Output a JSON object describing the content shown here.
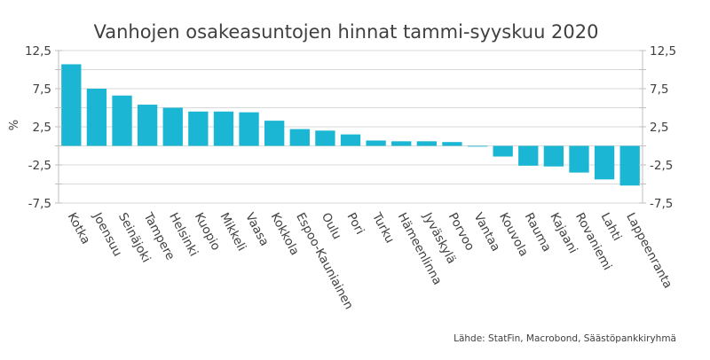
{
  "chart_data": {
    "type": "bar",
    "title": "Vanhojen osakeasuntojen hinnat tammi-syyskuu 2020",
    "ylabel": "%",
    "xlabel": "",
    "source": "Lähde: StatFin, Macrobond, Säästöpankkiryhmä",
    "ylim": [
      -7.5,
      12.5
    ],
    "yticks": [
      12.5,
      10,
      7.5,
      5,
      2.5,
      0,
      -2.5,
      -5,
      -7.5
    ],
    "ytick_labels": [
      "12,5",
      "",
      "7,5",
      "",
      "2,5",
      "",
      "-2,5",
      "",
      "-7,5"
    ],
    "grid": true,
    "color": "#1ab6d3",
    "categories": [
      "Kotka",
      "Joensuu",
      "Seinäjoki",
      "Tampere",
      "Helsinki",
      "Kuopio",
      "Mikkeli",
      "Vaasa",
      "Kokkola",
      "Espoo-Kauniainen",
      "Oulu",
      "Pori",
      "Turku",
      "Hämeenlinna",
      "Jyväskylä",
      "Porvoo",
      "Vantaa",
      "Kouvola",
      "Rauma",
      "Kajaani",
      "Rovaniemi",
      "Lahti",
      "Lappeenranta"
    ],
    "values": [
      10.7,
      7.5,
      6.6,
      5.4,
      5.0,
      4.5,
      4.5,
      4.4,
      3.3,
      2.2,
      2.0,
      1.5,
      0.7,
      0.6,
      0.6,
      0.5,
      -0.1,
      -1.4,
      -2.6,
      -2.7,
      -3.5,
      -4.4,
      -5.2
    ]
  }
}
